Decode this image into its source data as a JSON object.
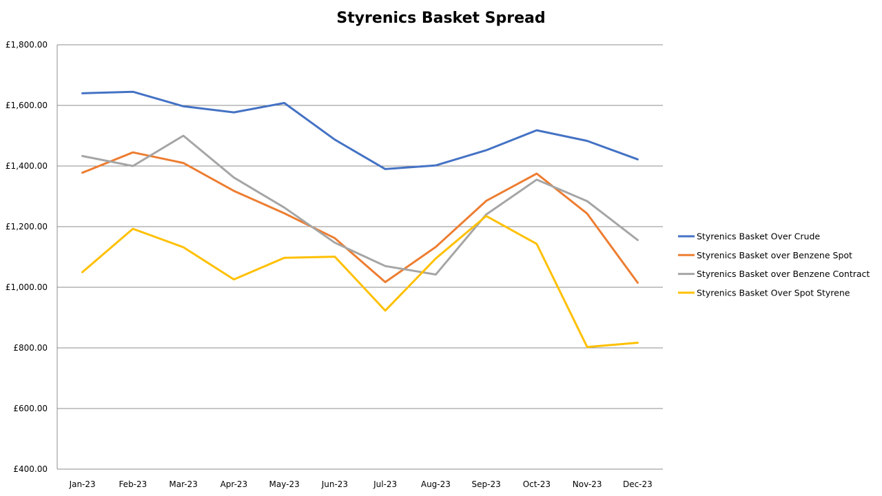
{
  "chart_data": {
    "type": "line",
    "title": "Styrenics Basket Spread",
    "xlabel": "",
    "ylabel": "",
    "categories": [
      "Jan-23",
      "Feb-23",
      "Mar-23",
      "Apr-23",
      "May-23",
      "Jun-23",
      "Jul-23",
      "Aug-23",
      "Sep-23",
      "Oct-23",
      "Nov-23",
      "Dec-23"
    ],
    "ylim": [
      400,
      1800
    ],
    "y_ticks": [
      400,
      600,
      800,
      1000,
      1200,
      1400,
      1600,
      1800
    ],
    "y_tick_labels": [
      "£400.00",
      "£600.00",
      "£800.00",
      "£1,000.00",
      "£1,200.00",
      "£1,400.00",
      "£1,600.00",
      "£1,800.00"
    ],
    "grid": true,
    "legend_position": "right",
    "series": [
      {
        "name": "Styrenics Basket Over Crude",
        "color": "#4472C4",
        "values": [
          1640,
          1645,
          1597,
          1577,
          1608,
          1487,
          1390,
          1402,
          1452,
          1518,
          1483,
          1422
        ]
      },
      {
        "name": "Styrenics Basket over Benzene Spot",
        "color": "#ED7D31",
        "values": [
          1378,
          1445,
          1410,
          1318,
          1244,
          1162,
          1017,
          1133,
          1285,
          1375,
          1243,
          1015
        ]
      },
      {
        "name": "Styrenics Basket over Benzene Contract",
        "color": "#A5A5A5",
        "values": [
          1433,
          1400,
          1500,
          1362,
          1263,
          1147,
          1070,
          1042,
          1240,
          1355,
          1284,
          1156
        ]
      },
      {
        "name": "Styrenics Basket Over Spot Styrene",
        "color": "#FFC000",
        "values": [
          1050,
          1193,
          1132,
          1026,
          1097,
          1101,
          923,
          1095,
          1235,
          1143,
          803,
          817
        ]
      }
    ]
  }
}
